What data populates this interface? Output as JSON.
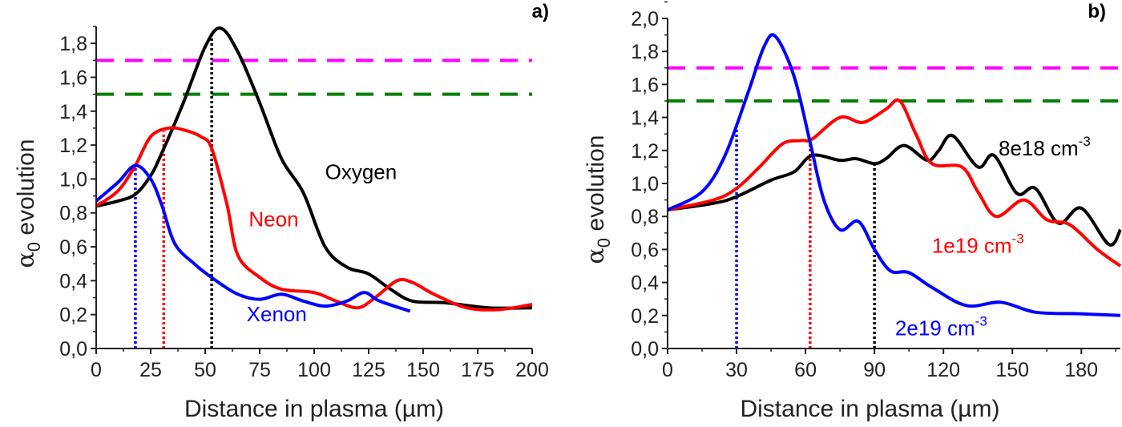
{
  "chart_data": [
    {
      "panel_label": "a)",
      "type": "line",
      "xlabel": "Distance in plasma (µm)",
      "ylabel_symbol": "α",
      "ylabel_sub": "0",
      "ylabel_rest": " evolution",
      "xlim": [
        0,
        200
      ],
      "ylim": [
        0,
        1.9
      ],
      "xticks": [
        0,
        25,
        50,
        75,
        100,
        125,
        150,
        175,
        200
      ],
      "yticks": [
        "0,0",
        "0,2",
        "0,4",
        "0,6",
        "0,8",
        "1,0",
        "1,2",
        "1,4",
        "1,6",
        "1,8"
      ],
      "grid": false,
      "thresholds": [
        {
          "y": 1.7,
          "color": "#ff00ff",
          "style": "dashed"
        },
        {
          "y": 1.5,
          "color": "#008000",
          "style": "dashed"
        }
      ],
      "series": [
        {
          "name": "Oxygen",
          "color": "#000000",
          "label_at": [
            105,
            1.0
          ],
          "points": [
            [
              0,
              0.84
            ],
            [
              10,
              0.87
            ],
            [
              18,
              0.91
            ],
            [
              25,
              1.02
            ],
            [
              30,
              1.15
            ],
            [
              40,
              1.45
            ],
            [
              50,
              1.78
            ],
            [
              57,
              1.89
            ],
            [
              65,
              1.75
            ],
            [
              75,
              1.45
            ],
            [
              85,
              1.12
            ],
            [
              95,
              0.92
            ],
            [
              105,
              0.6
            ],
            [
              115,
              0.48
            ],
            [
              125,
              0.44
            ],
            [
              135,
              0.35
            ],
            [
              145,
              0.28
            ],
            [
              160,
              0.27
            ],
            [
              180,
              0.24
            ],
            [
              200,
              0.24
            ]
          ],
          "marker_x": 53,
          "marker_y": 1.86
        },
        {
          "name": "Neon",
          "color": "#ff0000",
          "label_at": [
            70,
            0.72
          ],
          "points": [
            [
              0,
              0.84
            ],
            [
              10,
              0.93
            ],
            [
              18,
              1.08
            ],
            [
              25,
              1.25
            ],
            [
              33,
              1.3
            ],
            [
              40,
              1.29
            ],
            [
              48,
              1.25
            ],
            [
              53,
              1.18
            ],
            [
              60,
              0.85
            ],
            [
              65,
              0.55
            ],
            [
              75,
              0.42
            ],
            [
              85,
              0.35
            ],
            [
              100,
              0.33
            ],
            [
              110,
              0.28
            ],
            [
              120,
              0.24
            ],
            [
              128,
              0.3
            ],
            [
              138,
              0.4
            ],
            [
              145,
              0.39
            ],
            [
              155,
              0.32
            ],
            [
              170,
              0.24
            ],
            [
              185,
              0.23
            ],
            [
              200,
              0.26
            ]
          ],
          "marker_x": 31,
          "marker_y": 1.28
        },
        {
          "name": "Xenon",
          "color": "#0000ff",
          "label_at": [
            69,
            0.16
          ],
          "points": [
            [
              0,
              0.87
            ],
            [
              10,
              0.98
            ],
            [
              18,
              1.08
            ],
            [
              25,
              1.0
            ],
            [
              30,
              0.85
            ],
            [
              36,
              0.62
            ],
            [
              45,
              0.5
            ],
            [
              55,
              0.4
            ],
            [
              65,
              0.32
            ],
            [
              75,
              0.29
            ],
            [
              85,
              0.32
            ],
            [
              95,
              0.28
            ],
            [
              105,
              0.25
            ],
            [
              115,
              0.28
            ],
            [
              123,
              0.33
            ],
            [
              130,
              0.28
            ],
            [
              144,
              0.22
            ]
          ],
          "marker_x": 18,
          "marker_y": 1.08
        }
      ]
    },
    {
      "panel_label": "b)",
      "type": "line",
      "xlabel": "Distance in plasma (µm)",
      "ylabel_symbol": "α",
      "ylabel_sub": "0",
      "ylabel_rest": " evolution",
      "xlim": [
        0,
        197
      ],
      "ylim": [
        0,
        2.0
      ],
      "xticks": [
        0,
        30,
        60,
        90,
        120,
        150,
        180
      ],
      "yticks": [
        "0,0",
        "0,2",
        "0,4",
        "0,6",
        "0,8",
        "1,0",
        "1,2",
        "1,4",
        "1,6",
        "1,8",
        "2,0"
      ],
      "grid": false,
      "thresholds": [
        {
          "y": 1.7,
          "color": "#ff00ff",
          "style": "dashed"
        },
        {
          "y": 1.5,
          "color": "#008000",
          "style": "dashed"
        }
      ],
      "series": [
        {
          "name": "8e18 cm",
          "sup": "-3",
          "color": "#000000",
          "label_at": [
            144,
            1.17
          ],
          "points": [
            [
              0,
              0.84
            ],
            [
              20,
              0.88
            ],
            [
              30,
              0.92
            ],
            [
              45,
              1.02
            ],
            [
              55,
              1.07
            ],
            [
              63,
              1.17
            ],
            [
              75,
              1.14
            ],
            [
              82,
              1.15
            ],
            [
              90,
              1.12
            ],
            [
              95,
              1.15
            ],
            [
              103,
              1.23
            ],
            [
              113,
              1.14
            ],
            [
              118,
              1.2
            ],
            [
              124,
              1.29
            ],
            [
              135,
              1.1
            ],
            [
              142,
              1.17
            ],
            [
              152,
              0.94
            ],
            [
              160,
              0.97
            ],
            [
              170,
              0.76
            ],
            [
              180,
              0.85
            ],
            [
              192,
              0.63
            ],
            [
              197,
              0.72
            ]
          ],
          "marker_x": 90,
          "marker_y": 1.12
        },
        {
          "name": "1e19 cm",
          "sup": "-3",
          "color": "#ff0000",
          "label_at": [
            115,
            0.58
          ],
          "points": [
            [
              0,
              0.84
            ],
            [
              20,
              0.9
            ],
            [
              30,
              0.97
            ],
            [
              40,
              1.1
            ],
            [
              50,
              1.24
            ],
            [
              58,
              1.26
            ],
            [
              63,
              1.27
            ],
            [
              75,
              1.4
            ],
            [
              85,
              1.37
            ],
            [
              95,
              1.45
            ],
            [
              101,
              1.5
            ],
            [
              108,
              1.3
            ],
            [
              115,
              1.12
            ],
            [
              128,
              1.1
            ],
            [
              135,
              0.95
            ],
            [
              143,
              0.8
            ],
            [
              155,
              0.9
            ],
            [
              165,
              0.78
            ],
            [
              175,
              0.75
            ],
            [
              187,
              0.6
            ],
            [
              197,
              0.5
            ]
          ],
          "marker_x": 62,
          "marker_y": 1.25
        },
        {
          "name": "2e19 cm",
          "sup": "-3",
          "color": "#0000ff",
          "label_at": [
            99,
            0.08
          ],
          "points": [
            [
              0,
              0.84
            ],
            [
              15,
              0.95
            ],
            [
              25,
              1.17
            ],
            [
              35,
              1.55
            ],
            [
              42,
              1.83
            ],
            [
              47,
              1.89
            ],
            [
              55,
              1.65
            ],
            [
              62,
              1.25
            ],
            [
              68,
              0.9
            ],
            [
              75,
              0.72
            ],
            [
              83,
              0.77
            ],
            [
              90,
              0.6
            ],
            [
              97,
              0.47
            ],
            [
              105,
              0.46
            ],
            [
              115,
              0.37
            ],
            [
              130,
              0.26
            ],
            [
              145,
              0.28
            ],
            [
              160,
              0.22
            ],
            [
              180,
              0.21
            ],
            [
              197,
              0.2
            ]
          ],
          "marker_x": 30,
          "marker_y": 1.35
        }
      ]
    }
  ]
}
